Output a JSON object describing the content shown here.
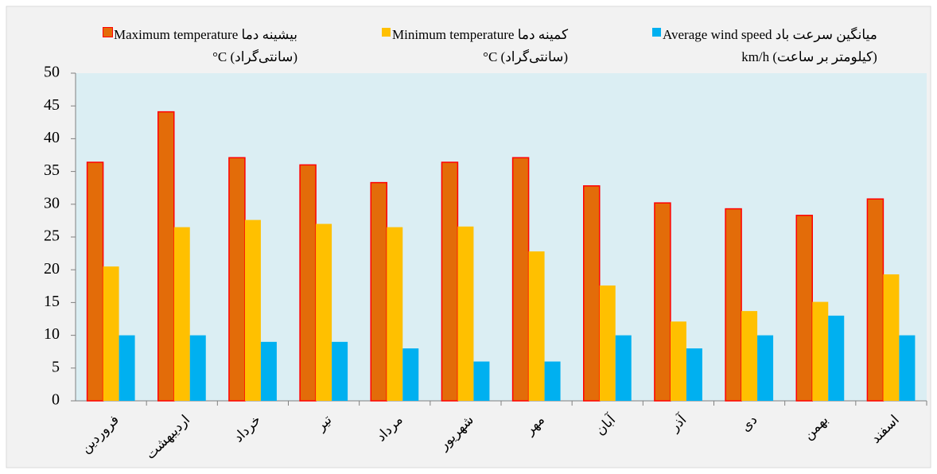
{
  "chart_data": {
    "type": "bar",
    "categories": [
      "فروردین",
      "اردیبهشت",
      "خرداد",
      "تیر",
      "مرداد",
      "شهریور",
      "مهر",
      "آبان",
      "آذر",
      "دی",
      "بهمن",
      "اسفند"
    ],
    "series": [
      {
        "name": "بیشینه دما Maximum temperature",
        "unit": "(سانتی‌گراد) C°",
        "color": "#e36c09",
        "values": [
          36.4,
          44.1,
          37.1,
          36.0,
          33.3,
          36.4,
          37.1,
          32.8,
          30.2,
          29.3,
          28.3,
          30.8
        ]
      },
      {
        "name": "کمینه دما Minimum temperature",
        "unit": "(سانتی‌گراد) C°",
        "color": "#ffc000",
        "values": [
          20.5,
          26.5,
          27.6,
          27.0,
          26.5,
          26.6,
          22.8,
          17.6,
          12.1,
          13.7,
          15.1,
          19.3
        ]
      },
      {
        "name": "میانگین سرعت باد Average wind speed",
        "unit": "(کیلومتر بر ساعت) km/h",
        "color": "#00b0f0",
        "values": [
          10,
          10,
          9,
          9,
          8,
          6,
          6,
          10,
          8,
          10,
          13,
          10
        ]
      }
    ],
    "ylim": [
      0,
      50
    ],
    "yticks": [
      0,
      5,
      10,
      15,
      20,
      25,
      30,
      35,
      40,
      45,
      50
    ]
  }
}
